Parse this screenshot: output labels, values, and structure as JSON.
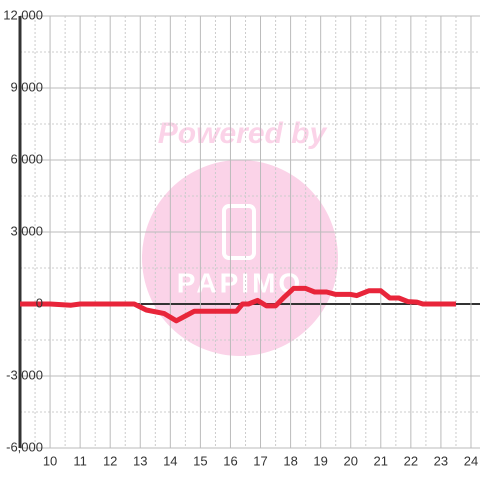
{
  "chart_data": {
    "type": "line",
    "x": [
      9,
      10,
      10.7,
      11,
      12,
      12.8,
      13.2,
      13.8,
      14.2,
      14.5,
      14.8,
      15.5,
      16.2,
      16.4,
      16.6,
      16.9,
      17.2,
      17.5,
      17.8,
      18.1,
      18.5,
      18.8,
      19.2,
      19.5,
      20.0,
      20.2,
      20.6,
      21.0,
      21.3,
      21.6,
      21.9,
      22.2,
      22.4,
      23.5
    ],
    "series": [
      {
        "color": "#e8253a",
        "values": [
          0,
          0,
          -50,
          0,
          0,
          0,
          -250,
          -400,
          -700,
          -500,
          -300,
          -300,
          -300,
          0,
          0,
          150,
          -80,
          -80,
          300,
          650,
          650,
          500,
          500,
          400,
          400,
          350,
          550,
          550,
          250,
          250,
          100,
          80,
          0,
          0
        ]
      }
    ],
    "xlim": [
      9,
      24.3
    ],
    "xticks": [
      10,
      11,
      12,
      13,
      14,
      15,
      16,
      17,
      18,
      19,
      20,
      21,
      22,
      23,
      24
    ],
    "ylim": [
      -6000,
      12000
    ],
    "yticks": [
      {
        "value": -6000,
        "label": "-6,000"
      },
      {
        "value": -3000,
        "label": "-3,000"
      },
      0,
      {
        "value": 3000,
        "label": "3,000"
      },
      {
        "value": 6000,
        "label": "6,000"
      },
      {
        "value": 9000,
        "label": "9,000"
      },
      {
        "value": 12000,
        "label": "12,000"
      }
    ],
    "grid": true,
    "watermark": {
      "text": "Powered by",
      "logo": "PAPIMO"
    }
  }
}
